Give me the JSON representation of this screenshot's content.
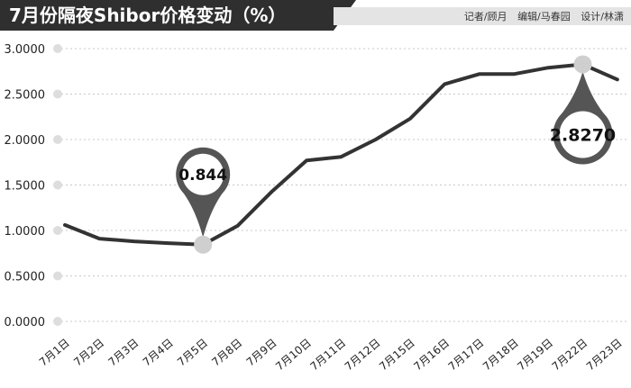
{
  "header": {
    "title": "7月份隔夜Shibor价格变动（%）",
    "credits": [
      "记者/顾月",
      "编辑/马春园",
      "设计/林潇"
    ]
  },
  "colors": {
    "title_bg": "#2f2f2f",
    "line": "#333333",
    "grid": "#c8c8c8",
    "marker": "#cfcfcf",
    "callout": "#555555"
  },
  "chart_data": {
    "type": "line",
    "title": "7月份隔夜Shibor价格变动（%）",
    "categories": [
      "7月1日",
      "7月2日",
      "7月3日",
      "7月4日",
      "7月5日",
      "7月8日",
      "7月9日",
      "7月10日",
      "7月11日",
      "7月12日",
      "7月15日",
      "7月16日",
      "7月17日",
      "7月18日",
      "7月19日",
      "7月22日",
      "7月23日"
    ],
    "values": [
      1.06,
      0.91,
      0.88,
      0.86,
      0.844,
      1.05,
      1.43,
      1.77,
      1.81,
      2.0,
      2.23,
      2.61,
      2.72,
      2.72,
      2.79,
      2.827,
      2.66
    ],
    "ylim": [
      0,
      3
    ],
    "yticks": [
      "0.0000",
      "0.5000",
      "1.0000",
      "1.5000",
      "2.0000",
      "2.5000",
      "3.0000"
    ],
    "grid": true,
    "annotations": [
      {
        "label": "0.844",
        "category_index": 4,
        "value": 0.844
      },
      {
        "label": "2.8270",
        "category_index": 15,
        "value": 2.827
      }
    ]
  }
}
